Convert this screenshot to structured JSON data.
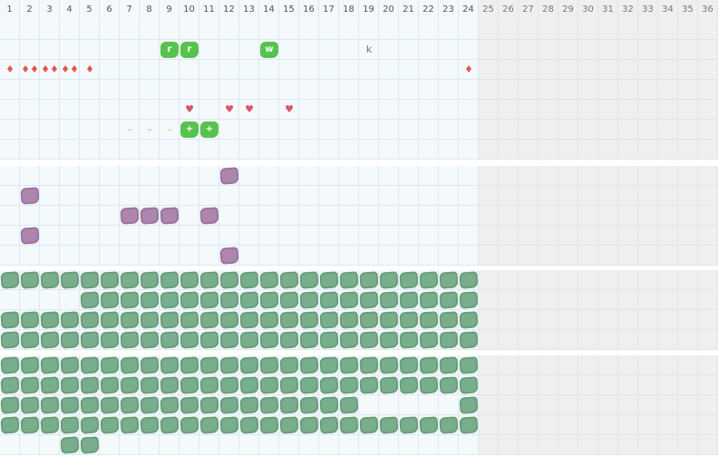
{
  "board": {
    "columns": 36,
    "active_columns": 24,
    "column_labels": [
      "1",
      "2",
      "3",
      "4",
      "5",
      "6",
      "7",
      "8",
      "9",
      "10",
      "11",
      "12",
      "13",
      "14",
      "15",
      "16",
      "17",
      "18",
      "19",
      "20",
      "21",
      "22",
      "23",
      "24",
      "25",
      "26",
      "27",
      "28",
      "29",
      "30",
      "31",
      "32",
      "33",
      "34",
      "35",
      "36"
    ],
    "sections": [
      {
        "name": "track-section",
        "rows": 7
      },
      {
        "name": "purple-section",
        "rows": 5
      },
      {
        "name": "green-section-a",
        "rows": 4
      },
      {
        "name": "green-section-b",
        "rows": 5
      }
    ]
  },
  "pieces": [
    {
      "name": "r-piece-1",
      "label": "r",
      "col": 9,
      "row": 1
    },
    {
      "name": "r-piece-2",
      "label": "r",
      "col": 10,
      "row": 1
    },
    {
      "name": "w-piece",
      "label": "w",
      "col": 14,
      "row": 1
    },
    {
      "name": "plus-piece-1",
      "label": "+",
      "col": 10,
      "row": 5
    },
    {
      "name": "plus-piece-2",
      "label": "+",
      "col": 11,
      "row": 5
    }
  ],
  "symbols": [
    {
      "name": "k-marker",
      "text": "k",
      "col": 19,
      "row": 1,
      "color": "#9b5c86"
    },
    {
      "name": "drop-icon",
      "text": "♦",
      "col": 1,
      "row": 2,
      "color": "#e05a4a"
    },
    {
      "name": "drop-icon",
      "text": "♦♦",
      "col": 2,
      "row": 2,
      "color": "#e05a4a"
    },
    {
      "name": "drop-icon",
      "text": "♦♦",
      "col": 3,
      "row": 2,
      "color": "#e05a4a"
    },
    {
      "name": "drop-icon",
      "text": "♦♦",
      "col": 4,
      "row": 2,
      "color": "#e05a4a"
    },
    {
      "name": "drop-icon",
      "text": "♦",
      "col": 5,
      "row": 2,
      "color": "#e05a4a"
    },
    {
      "name": "drop-icon",
      "text": "♦",
      "col": 24,
      "row": 2,
      "color": "#e05a4a"
    },
    {
      "name": "heart-icon",
      "text": "♥",
      "col": 10,
      "row": 4,
      "color": "#d9556b"
    },
    {
      "name": "heart-icon",
      "text": "♥",
      "col": 12,
      "row": 4,
      "color": "#d9556b"
    },
    {
      "name": "heart-icon",
      "text": "♥",
      "col": 13,
      "row": 4,
      "color": "#d9556b"
    },
    {
      "name": "heart-icon",
      "text": "♥",
      "col": 15,
      "row": 4,
      "color": "#d9556b"
    },
    {
      "name": "dash-marker",
      "text": "–",
      "col": 7,
      "row": 5,
      "color": "#e89a4a"
    },
    {
      "name": "dash-marker",
      "text": "–",
      "col": 8,
      "row": 5,
      "color": "#e89a4a"
    },
    {
      "name": "dash-marker",
      "text": "–",
      "col": 9,
      "row": 5,
      "color": "#e89a4a"
    }
  ],
  "purple_tiles": [
    [
      12,
      0
    ],
    [
      2,
      1
    ],
    [
      7,
      2
    ],
    [
      8,
      2
    ],
    [
      9,
      2
    ],
    [
      11,
      2
    ],
    [
      2,
      3
    ],
    [
      12,
      4
    ]
  ],
  "green_tiles": {
    "section_a": [
      [
        1,
        24
      ],
      [
        5,
        24
      ],
      [
        1,
        24
      ],
      [
        1,
        24
      ]
    ],
    "section_b": [
      [
        1,
        24
      ],
      [
        1,
        24
      ],
      [
        1,
        18,
        24
      ],
      [
        1,
        24
      ],
      [
        4,
        5
      ]
    ]
  },
  "colors": {
    "cell_bg": "#f4f9fc",
    "dim_bg": "#efefef",
    "green_tile": "#78ae8b",
    "purple_tile": "#ad86ad",
    "piece_green": "#58c24f"
  }
}
